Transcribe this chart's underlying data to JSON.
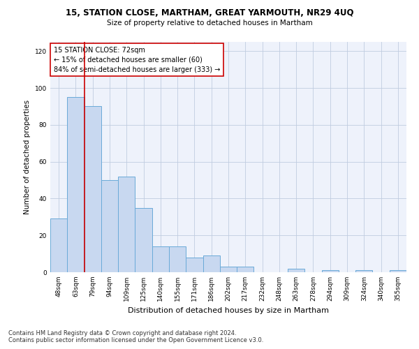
{
  "title1": "15, STATION CLOSE, MARTHAM, GREAT YARMOUTH, NR29 4UQ",
  "title2": "Size of property relative to detached houses in Martham",
  "xlabel": "Distribution of detached houses by size in Martham",
  "ylabel": "Number of detached properties",
  "footer1": "Contains HM Land Registry data © Crown copyright and database right 2024.",
  "footer2": "Contains public sector information licensed under the Open Government Licence v3.0.",
  "annotation_title": "15 STATION CLOSE: 72sqm",
  "annotation_line1": "← 15% of detached houses are smaller (60)",
  "annotation_line2": "84% of semi-detached houses are larger (333) →",
  "bar_color": "#c8d8f0",
  "bar_edge_color": "#6aaad8",
  "redline_color": "#cc0000",
  "categories": [
    "48sqm",
    "63sqm",
    "79sqm",
    "94sqm",
    "109sqm",
    "125sqm",
    "140sqm",
    "155sqm",
    "171sqm",
    "186sqm",
    "202sqm",
    "217sqm",
    "232sqm",
    "248sqm",
    "263sqm",
    "278sqm",
    "294sqm",
    "309sqm",
    "324sqm",
    "340sqm",
    "355sqm"
  ],
  "values": [
    29,
    95,
    90,
    50,
    52,
    35,
    14,
    14,
    8,
    9,
    3,
    3,
    0,
    0,
    2,
    0,
    1,
    0,
    1,
    0,
    1
  ],
  "redline_x": 1.5,
  "ylim": [
    0,
    125
  ],
  "yticks": [
    0,
    20,
    40,
    60,
    80,
    100,
    120
  ],
  "background_color": "#eef2fb",
  "grid_color": "#c0cce0",
  "title1_fontsize": 8.5,
  "title2_fontsize": 7.5,
  "ylabel_fontsize": 7.5,
  "xlabel_fontsize": 8.0,
  "tick_fontsize": 6.5,
  "annotation_fontsize": 7.0,
  "footer_fontsize": 6.0
}
